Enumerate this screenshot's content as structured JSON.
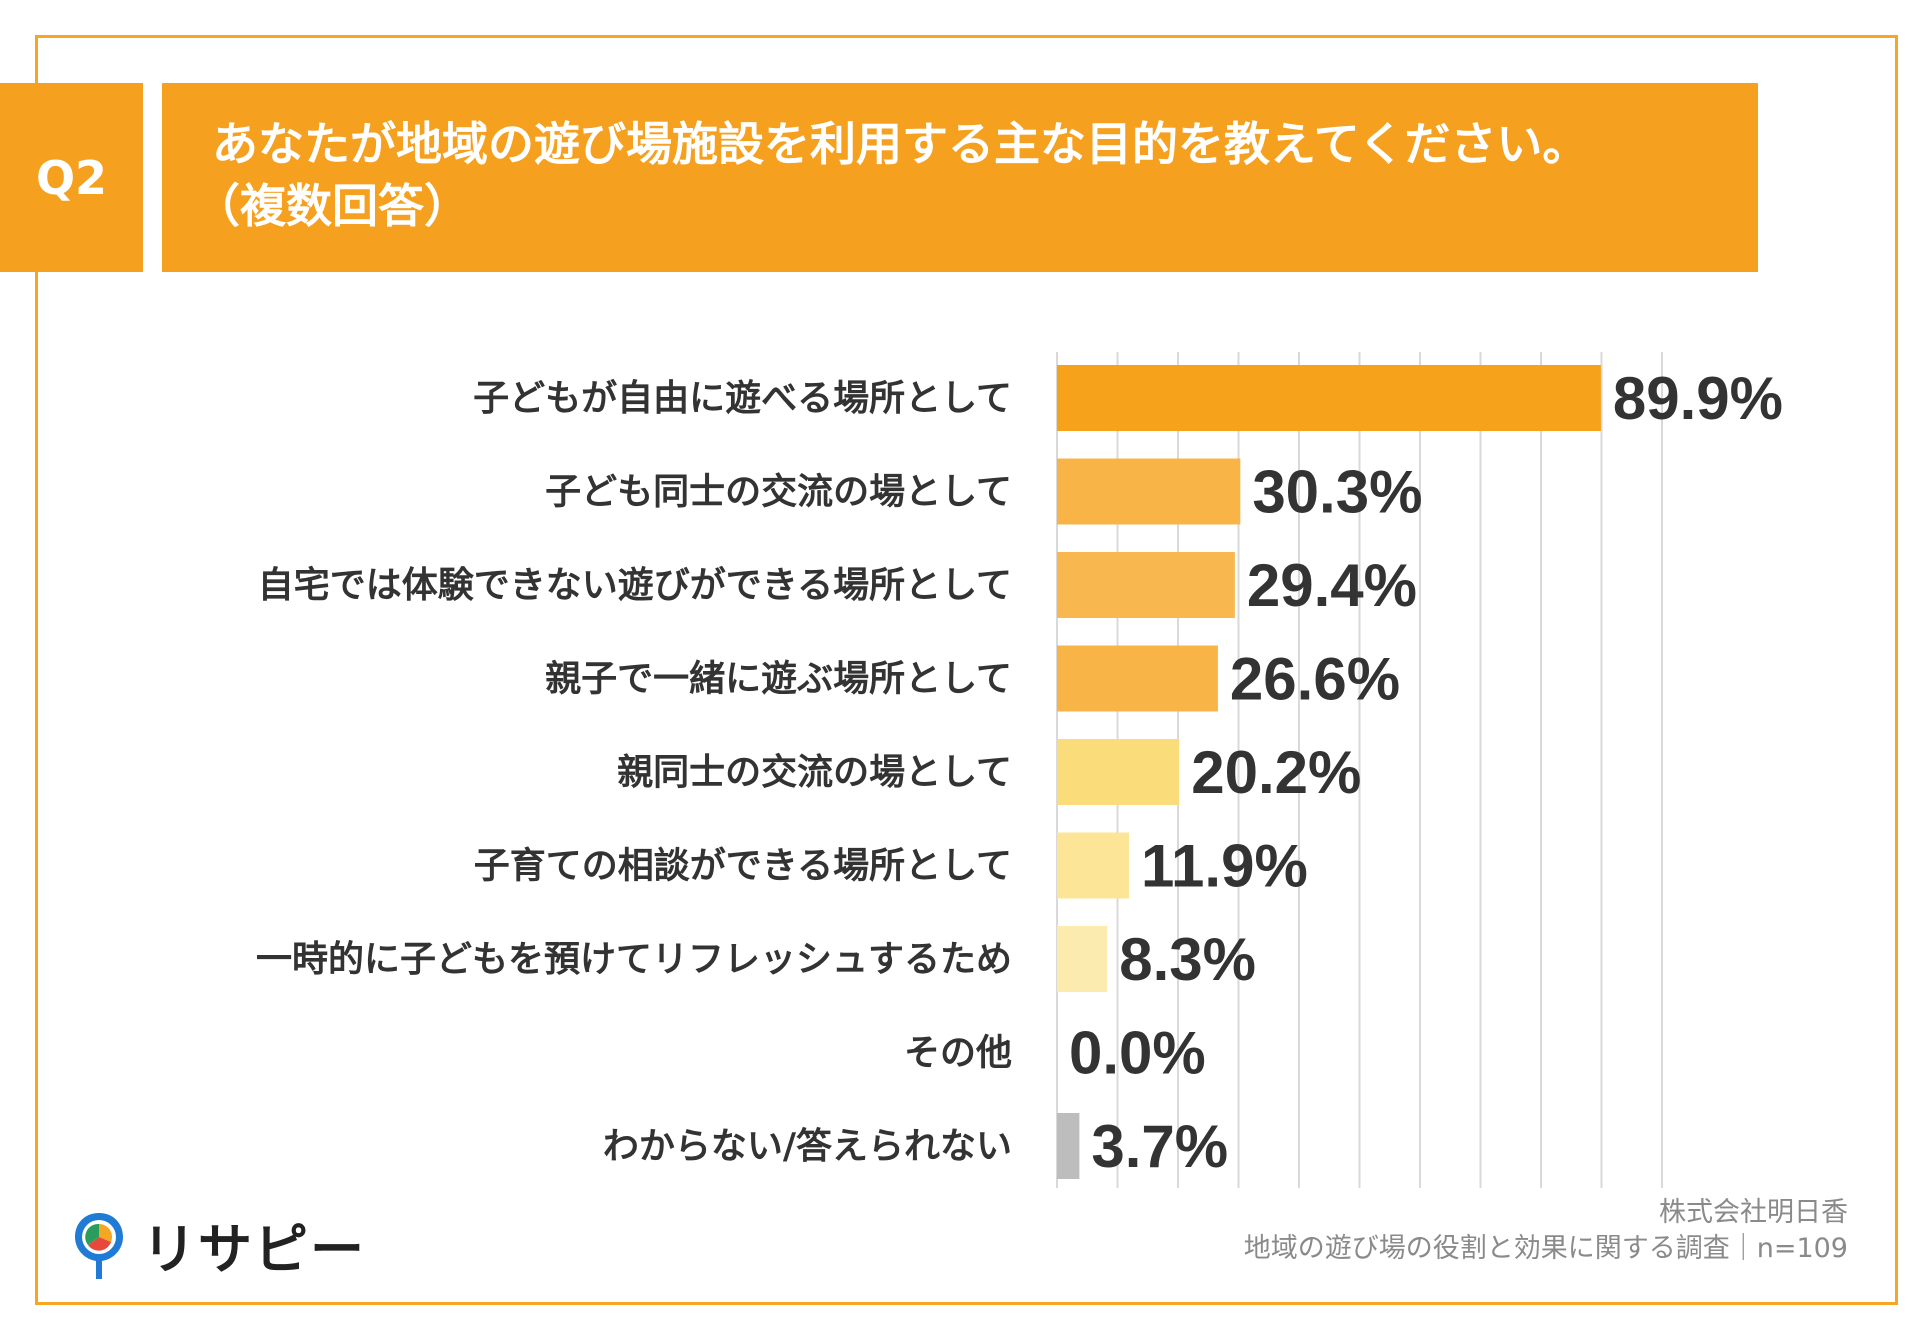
{
  "header": {
    "q_number": "Q2",
    "title_line1": "あなたが地域の遊び場施設を利用する主な目的を教えてください。",
    "title_line2": "（複数回答）"
  },
  "chart_data": {
    "type": "bar",
    "orientation": "horizontal",
    "title": "あなたが地域の遊び場施設を利用する主な目的を教えてください。（複数回答）",
    "categories": [
      "子どもが自由に遊べる場所として",
      "子ども同士の交流の場として",
      "自宅では体験できない遊びができる場所として",
      "親子で一緒に遊ぶ場所として",
      "親同士の交流の場として",
      "子育ての相談ができる場所として",
      "一時的に子どもを預けてリフレッシュするため",
      "その他",
      "わからない/答えられない"
    ],
    "values": [
      89.9,
      30.3,
      29.4,
      26.6,
      20.2,
      11.9,
      8.3,
      0.0,
      3.7
    ],
    "value_labels": [
      "89.9%",
      "30.3%",
      "29.4%",
      "26.6%",
      "20.2%",
      "11.9%",
      "8.3%",
      "0.0%",
      "3.7%"
    ],
    "colors": [
      "#f7a21b",
      "#f8b447",
      "#f8b84f",
      "#f8b447",
      "#fbdc7a",
      "#fce596",
      "#fcebaf",
      "#fcebaf",
      "#bdbdbd"
    ],
    "xlim": [
      0,
      100
    ],
    "grid": true,
    "xlabel": "",
    "ylabel": "",
    "unit": "%"
  },
  "footer": {
    "company": "株式会社明日香",
    "survey": "地域の遊び場の役割と効果に関する調査｜n=109"
  },
  "logo": {
    "text": "リサピー",
    "icon": "pin-icon",
    "colors": [
      "#1f7bd6",
      "#f5a623",
      "#e8473b",
      "#2a9d5c"
    ]
  }
}
